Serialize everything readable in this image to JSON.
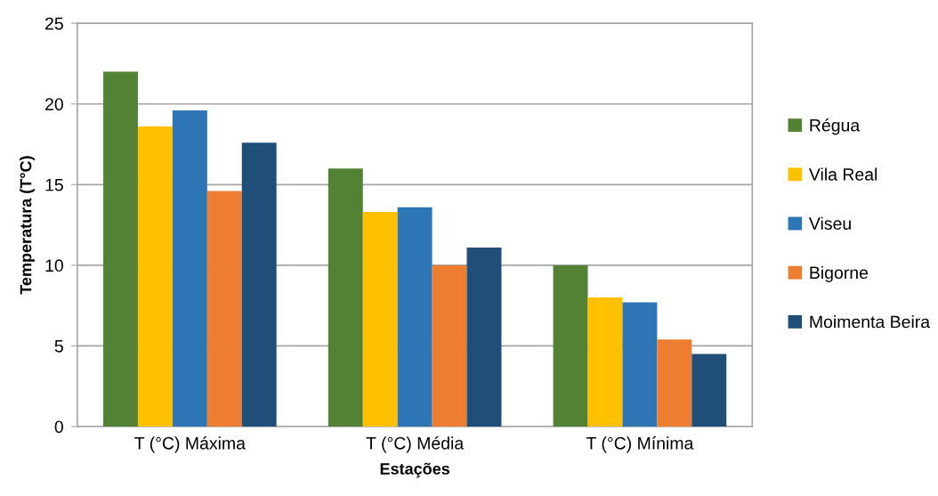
{
  "chart_data": {
    "type": "bar",
    "xlabel": "Estações",
    "ylabel": "Temperatura (T°C)",
    "categories": [
      "T (°C) Máxima",
      "T (°C) Média",
      "T (°C) Mínima"
    ],
    "series": [
      {
        "name": "Régua",
        "color": "#548235",
        "values": [
          22.0,
          16.0,
          10.0
        ]
      },
      {
        "name": "Vila Real",
        "color": "#ffc000",
        "values": [
          18.6,
          13.3,
          8.0
        ]
      },
      {
        "name": "Viseu",
        "color": "#2e75b6",
        "values": [
          19.6,
          13.6,
          7.7
        ]
      },
      {
        "name": "Bigorne",
        "color": "#ed7d31",
        "values": [
          14.6,
          10.0,
          5.4
        ]
      },
      {
        "name": "Moimenta Beira",
        "color": "#1f4e79",
        "values": [
          17.6,
          11.1,
          4.5
        ]
      }
    ],
    "ylim": [
      0,
      25
    ],
    "yticks": [
      0,
      5,
      10,
      15,
      20,
      25
    ],
    "grid": "y",
    "legend": "right"
  }
}
